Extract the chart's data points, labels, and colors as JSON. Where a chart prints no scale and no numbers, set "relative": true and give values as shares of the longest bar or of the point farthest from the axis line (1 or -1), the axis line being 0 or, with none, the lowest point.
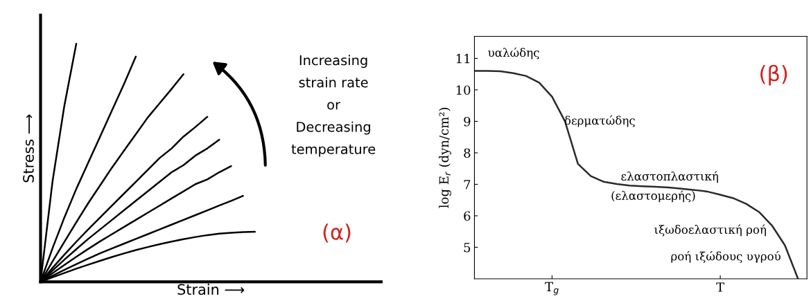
{
  "chart_data": [
    {
      "type": "line",
      "relative": true,
      "xlabel": "Strain ⟶",
      "ylabel": "Stress ⟶",
      "grid": false,
      "legend": false,
      "marker": "none",
      "line_style": "solid",
      "categories": [
        null,
        null,
        null,
        null,
        null,
        null,
        null,
        null,
        null,
        null,
        null,
        null,
        null,
        null,
        null,
        null,
        null,
        null,
        null
      ],
      "series": [
        {
          "color": "#000000",
          "values": [
            0,
            0.42,
            0.74,
            1,
            null,
            null,
            null,
            null,
            null,
            null,
            null,
            null,
            null,
            null,
            null,
            null,
            null,
            null,
            null
          ]
        },
        {
          "color": "#000000",
          "values": [
            0,
            0.14,
            0.27,
            0.39,
            0.5,
            0.61,
            0.72,
            0.83,
            0.946,
            null,
            null,
            null,
            null,
            null,
            null,
            null,
            null,
            null,
            null
          ]
        },
        {
          "color": "#000000",
          "values": [
            0,
            0.085,
            0.168,
            0.25,
            0.33,
            0.405,
            0.48,
            0.55,
            0.62,
            0.69,
            0.75,
            0.81,
            0.872,
            null,
            null,
            null,
            null,
            null,
            null
          ]
        },
        {
          "color": "#000000",
          "values": [
            0,
            0.058,
            0.114,
            0.168,
            0.22,
            0.27,
            0.32,
            0.37,
            0.42,
            0.47,
            0.52,
            0.56,
            0.61,
            0.65,
            0.693,
            null,
            null,
            null,
            null
          ]
        },
        {
          "color": "#000000",
          "values": [
            0,
            0.047,
            0.093,
            0.137,
            0.18,
            0.22,
            0.26,
            0.3,
            0.34,
            0.38,
            0.42,
            0.46,
            0.49,
            0.53,
            0.56,
            0.597,
            null,
            null,
            null
          ]
        },
        {
          "color": "#000000",
          "values": [
            0,
            0.036,
            0.071,
            0.105,
            0.138,
            0.17,
            0.2,
            0.23,
            0.26,
            0.29,
            0.32,
            0.35,
            0.38,
            0.41,
            0.43,
            0.46,
            0.486,
            null,
            null
          ]
        },
        {
          "color": "#000000",
          "values": [
            0,
            0.025,
            0.05,
            0.074,
            0.097,
            0.12,
            0.14,
            0.16,
            0.18,
            0.2,
            0.22,
            0.24,
            0.26,
            0.28,
            0.3,
            0.32,
            0.34,
            0.361,
            null
          ]
        },
        {
          "color": "#000000",
          "values": [
            0,
            0.019,
            0.037,
            0.055,
            0.072,
            0.088,
            0.104,
            0.119,
            0.133,
            0.146,
            0.158,
            0.169,
            0.179,
            0.188,
            0.196,
            0.202,
            0.206,
            0.209,
            0.21
          ]
        }
      ],
      "annotations": [
        "Increasing\nstrain rate\nor\nDecreasing\ntemperature",
        "(α)"
      ]
    },
    {
      "type": "line",
      "ylabel": "log E$_{r}$ (dyn/cm²)",
      "ylim": [
        4,
        11.7
      ],
      "yticks": [
        5,
        6,
        7,
        8,
        9,
        10,
        11
      ],
      "grid": false,
      "legend": false,
      "marker": "none",
      "line_style": "solid",
      "categories": [
        null,
        null,
        null,
        null,
        null,
        null,
        "T$_{g}$",
        null,
        null,
        null,
        null,
        null,
        null,
        null,
        null,
        null,
        null,
        null,
        null,
        "T",
        null,
        null,
        null,
        null,
        null,
        null
      ],
      "series": [
        {
          "color": "#2a2a2a",
          "values": [
            10.6,
            10.6,
            10.59,
            10.53,
            10.44,
            10.23,
            9.78,
            9.0,
            7.65,
            7.26,
            7.08,
            7.01,
            6.96,
            6.94,
            6.92,
            6.9,
            6.86,
            6.82,
            6.77,
            6.67,
            6.56,
            6.38,
            6.12,
            5.69,
            5.06,
            4.01
          ]
        }
      ],
      "annotations": [
        "υαλώδης",
        "δερματώδης",
        "ελαστοπλαστική",
        "(ελαστομερής)",
        "ιξωδοελαστική ροή",
        "ροή ιξώδους υγρού",
        "(β)"
      ]
    }
  ]
}
